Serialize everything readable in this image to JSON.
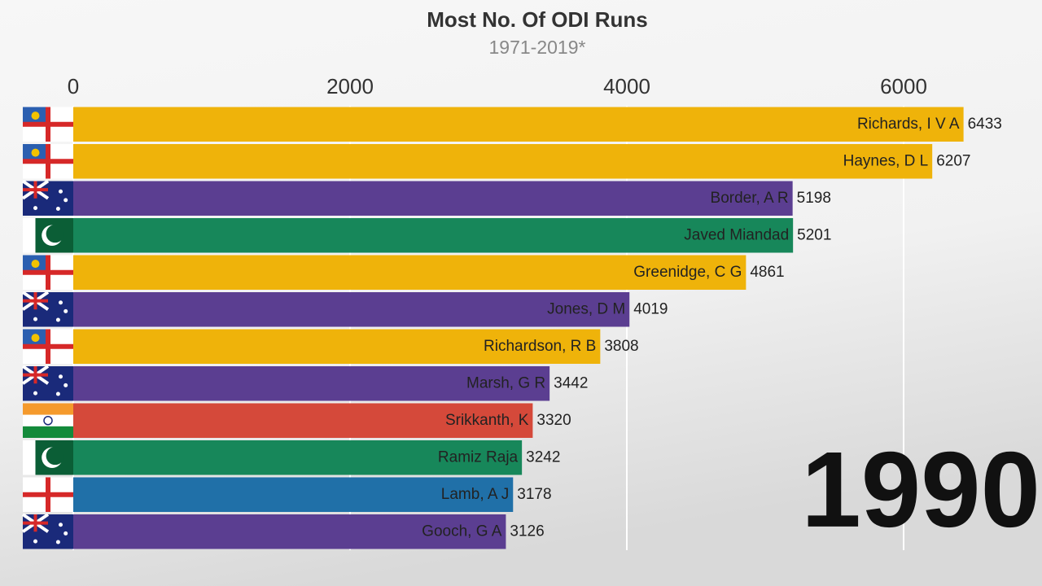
{
  "chart_data": {
    "type": "barh",
    "title": "Most No. Of ODI Runs",
    "subtitle": "1971-2019*",
    "annotation": "1990",
    "categories": [
      "Richards, I V A",
      "Haynes, D L",
      "Border, A R",
      "Javed Miandad",
      "Greenidge, C G",
      "Jones, D M",
      "Richardson, R B",
      "Marsh, G R",
      "Srikkanth, K",
      "Ramiz Raja",
      "Lamb, A J",
      "Gooch, G A"
    ],
    "values": [
      6433,
      6207,
      5198,
      5201,
      4861,
      4019,
      3808,
      3442,
      3320,
      3242,
      3178,
      3126
    ],
    "colors": [
      "#efb30a",
      "#efb30a",
      "#5b3e91",
      "#17875a",
      "#efb30a",
      "#5b3e91",
      "#efb30a",
      "#5b3e91",
      "#d5493a",
      "#17875a",
      "#2070a8",
      "#5b3e91"
    ],
    "xlim": [
      0,
      7000
    ],
    "xticks": [
      0,
      2000,
      4000,
      6000
    ],
    "grid": true
  }
}
